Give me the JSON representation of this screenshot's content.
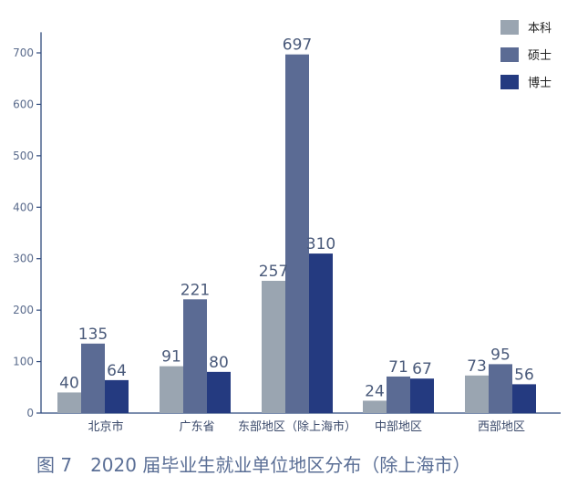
{
  "chart_data": {
    "type": "bar",
    "categories": [
      "北京市",
      "广东省",
      "东部地区（除上海市）",
      "中部地区",
      "西部地区"
    ],
    "series": [
      {
        "name": "本科",
        "values": [
          40,
          91,
          257,
          24,
          73
        ],
        "color": "#9aa5b1"
      },
      {
        "name": "硕士",
        "values": [
          135,
          221,
          697,
          71,
          95
        ],
        "color": "#5b6b94"
      },
      {
        "name": "博士",
        "values": [
          64,
          80,
          310,
          67,
          56
        ],
        "color": "#243a80"
      }
    ],
    "yticks": [
      0,
      100,
      200,
      300,
      400,
      500,
      600,
      700
    ],
    "ylim": [
      0,
      740
    ],
    "legend_position": "top-right",
    "caption": "图 7　2020 届毕业生就业单位地区分布（除上海市）",
    "axis_color": "#2f4a7d"
  }
}
